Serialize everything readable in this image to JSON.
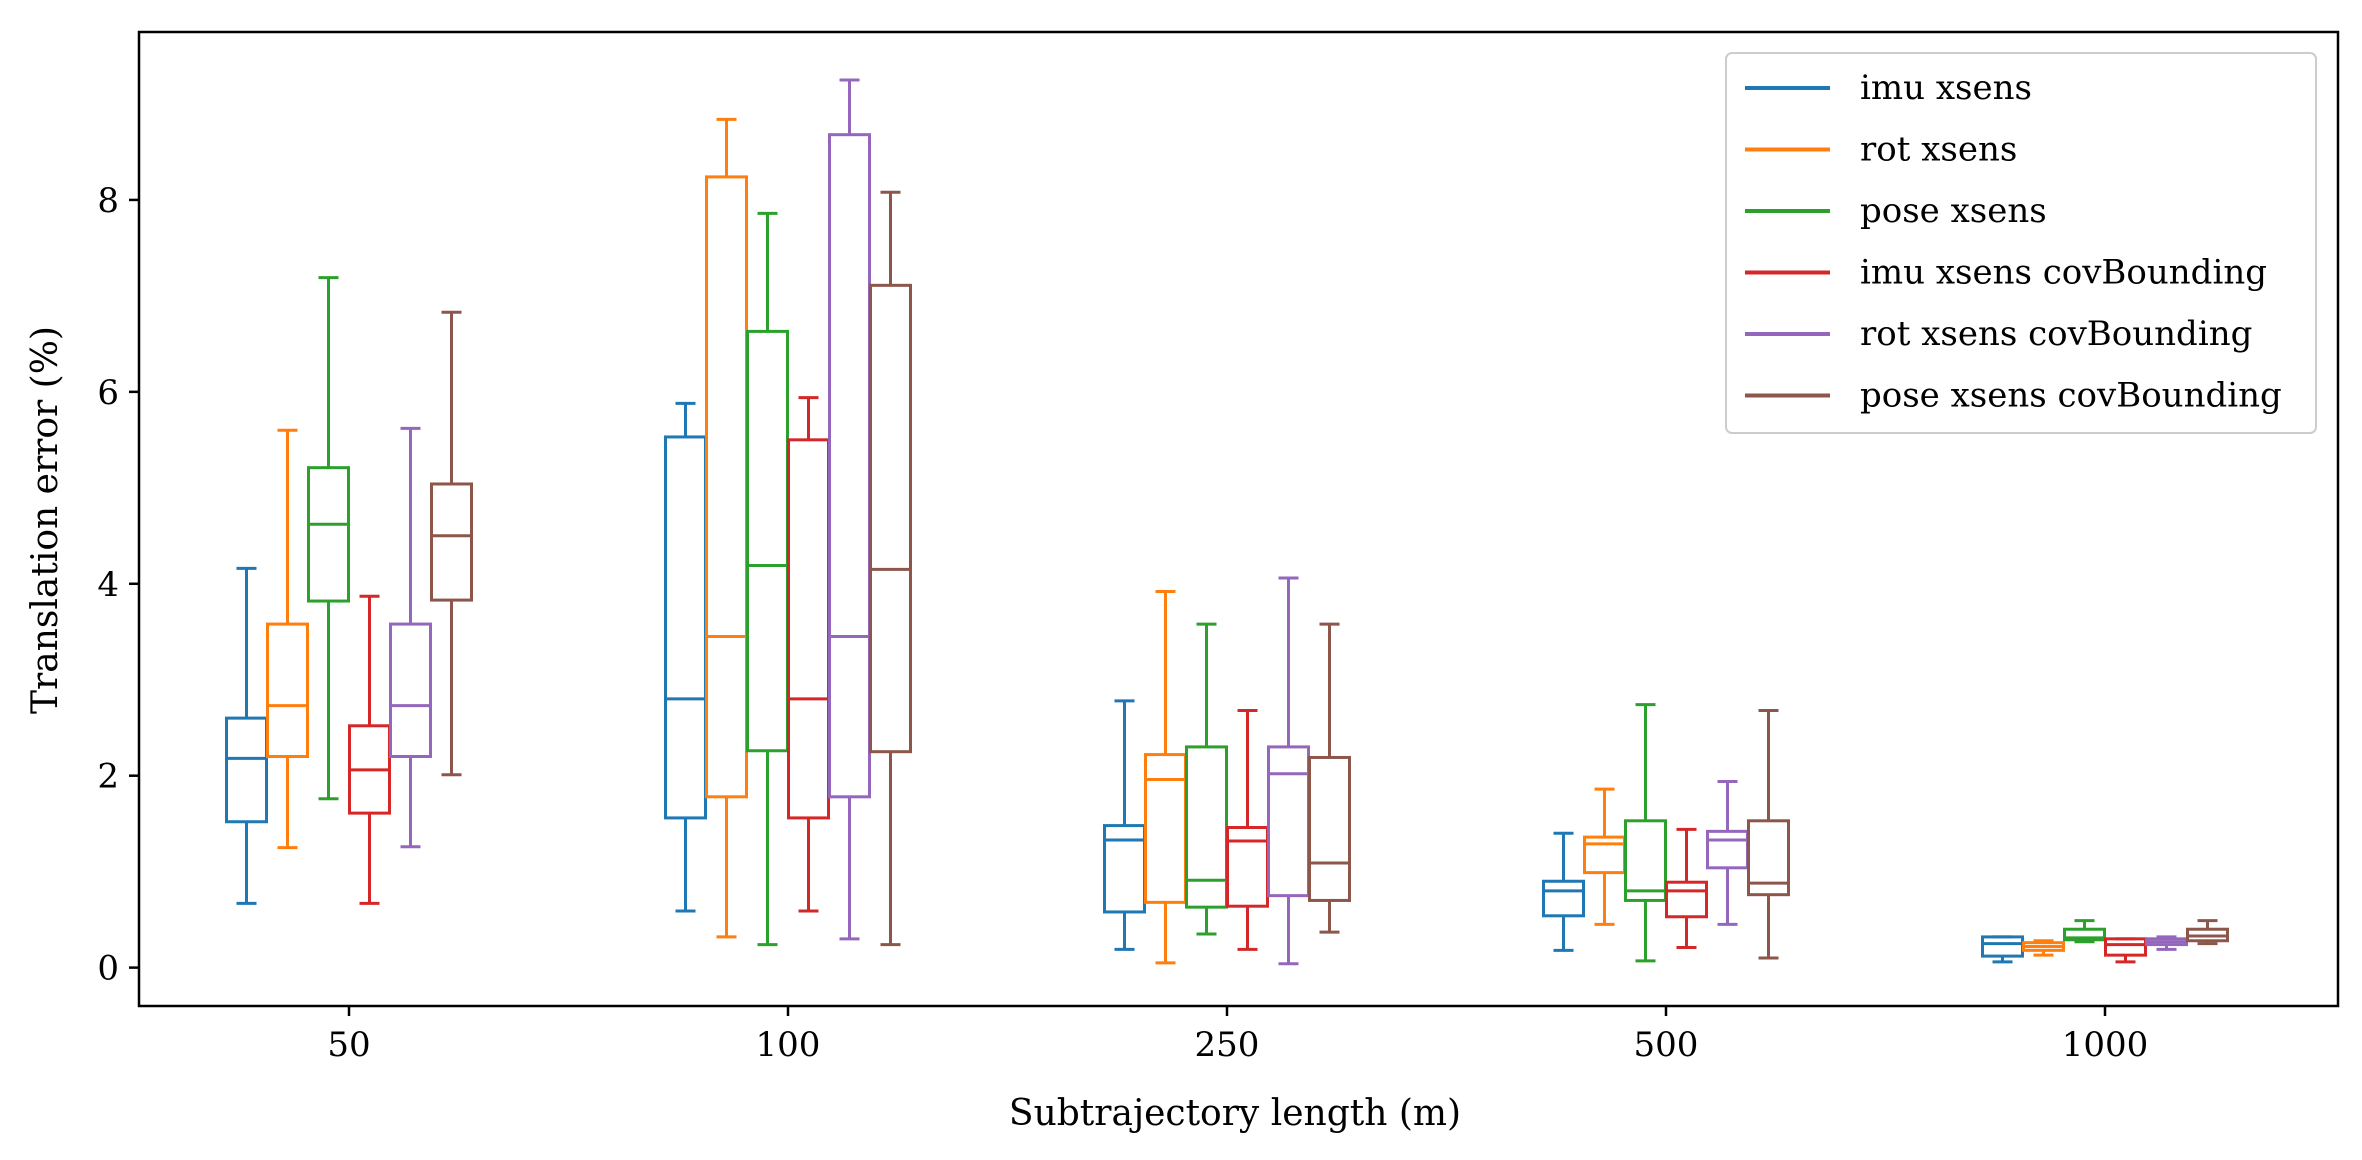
{
  "chart_data": {
    "type": "box",
    "xlabel": "Subtrajectory length (m)",
    "ylabel": "Translation error (%)",
    "ylim": [
      -0.4,
      9.75
    ],
    "yticks": [
      0,
      2,
      4,
      6,
      8
    ],
    "categories": [
      "50",
      "100",
      "250",
      "500",
      "1000"
    ],
    "grid": false,
    "legend_position": "top-right",
    "series": [
      {
        "name": "imu xsens",
        "color": "#1f77b4",
        "boxes": [
          {
            "min": 0.67,
            "q1": 1.52,
            "median": 2.18,
            "q3": 2.6,
            "max": 4.16
          },
          {
            "min": 0.59,
            "q1": 1.56,
            "median": 2.8,
            "q3": 5.53,
            "max": 5.88
          },
          {
            "min": 0.19,
            "q1": 0.58,
            "median": 1.33,
            "q3": 1.48,
            "max": 2.78
          },
          {
            "min": 0.18,
            "q1": 0.54,
            "median": 0.8,
            "q3": 0.9,
            "max": 1.4
          },
          {
            "min": 0.06,
            "q1": 0.12,
            "median": 0.25,
            "q3": 0.32,
            "max": 0.32
          }
        ]
      },
      {
        "name": "rot xsens",
        "color": "#ff7f0e",
        "boxes": [
          {
            "min": 1.25,
            "q1": 2.2,
            "median": 2.73,
            "q3": 3.58,
            "max": 5.6
          },
          {
            "min": 0.32,
            "q1": 1.78,
            "median": 3.45,
            "q3": 8.24,
            "max": 8.84
          },
          {
            "min": 0.05,
            "q1": 0.68,
            "median": 1.96,
            "q3": 2.22,
            "max": 3.92
          },
          {
            "min": 0.45,
            "q1": 0.99,
            "median": 1.29,
            "q3": 1.36,
            "max": 1.86
          },
          {
            "min": 0.13,
            "q1": 0.18,
            "median": 0.22,
            "q3": 0.26,
            "max": 0.28
          }
        ]
      },
      {
        "name": "pose xsens",
        "color": "#2ca02c",
        "boxes": [
          {
            "min": 1.76,
            "q1": 3.82,
            "median": 4.62,
            "q3": 5.21,
            "max": 7.19
          },
          {
            "min": 0.24,
            "q1": 2.26,
            "median": 4.19,
            "q3": 6.63,
            "max": 7.86
          },
          {
            "min": 0.35,
            "q1": 0.63,
            "median": 0.91,
            "q3": 2.3,
            "max": 3.58
          },
          {
            "min": 0.07,
            "q1": 0.7,
            "median": 0.8,
            "q3": 1.53,
            "max": 2.74
          },
          {
            "min": 0.27,
            "q1": 0.29,
            "median": 0.31,
            "q3": 0.4,
            "max": 0.49
          }
        ]
      },
      {
        "name": "imu xsens covBounding",
        "color": "#d62728",
        "boxes": [
          {
            "min": 0.67,
            "q1": 1.61,
            "median": 2.06,
            "q3": 2.52,
            "max": 3.87
          },
          {
            "min": 0.59,
            "q1": 1.56,
            "median": 2.8,
            "q3": 5.5,
            "max": 5.94
          },
          {
            "min": 0.19,
            "q1": 0.64,
            "median": 1.32,
            "q3": 1.46,
            "max": 2.68
          },
          {
            "min": 0.21,
            "q1": 0.53,
            "median": 0.8,
            "q3": 0.89,
            "max": 1.44
          },
          {
            "min": 0.06,
            "q1": 0.13,
            "median": 0.24,
            "q3": 0.3,
            "max": 0.3
          }
        ]
      },
      {
        "name": "rot xsens covBounding",
        "color": "#9467bd",
        "boxes": [
          {
            "min": 1.26,
            "q1": 2.2,
            "median": 2.73,
            "q3": 3.58,
            "max": 5.62
          },
          {
            "min": 0.3,
            "q1": 1.78,
            "median": 3.45,
            "q3": 8.68,
            "max": 9.25
          },
          {
            "min": 0.04,
            "q1": 0.75,
            "median": 2.02,
            "q3": 2.3,
            "max": 4.06
          },
          {
            "min": 0.45,
            "q1": 1.04,
            "median": 1.33,
            "q3": 1.42,
            "max": 1.94
          },
          {
            "min": 0.19,
            "q1": 0.24,
            "median": 0.27,
            "q3": 0.3,
            "max": 0.32
          }
        ]
      },
      {
        "name": "pose xsens covBounding",
        "color": "#8c564b",
        "boxes": [
          {
            "min": 2.01,
            "q1": 3.83,
            "median": 4.5,
            "q3": 5.04,
            "max": 6.83
          },
          {
            "min": 0.24,
            "q1": 2.25,
            "median": 4.15,
            "q3": 7.11,
            "max": 8.08
          },
          {
            "min": 0.37,
            "q1": 0.7,
            "median": 1.09,
            "q3": 2.19,
            "max": 3.58
          },
          {
            "min": 0.1,
            "q1": 0.76,
            "median": 0.88,
            "q3": 1.53,
            "max": 2.68
          },
          {
            "min": 0.25,
            "q1": 0.28,
            "median": 0.33,
            "q3": 0.4,
            "max": 0.49
          }
        ]
      }
    ]
  }
}
